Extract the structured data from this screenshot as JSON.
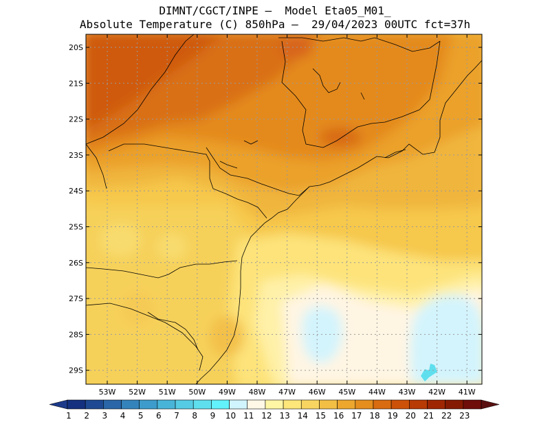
{
  "title_line1": "DIMNT/CGCT/INPE –  Model Eta05_M01_",
  "title_line2": "Absolute Temperature (C) 850hPa –  29/04/2023 00UTC fct=37h",
  "lat_labels": [
    "20S",
    "21S",
    "22S",
    "23S",
    "24S",
    "25S",
    "26S",
    "27S",
    "28S",
    "29S"
  ],
  "lon_labels": [
    "53W",
    "52W",
    "51W",
    "50W",
    "49W",
    "48W",
    "47W",
    "46W",
    "45W",
    "44W",
    "43W",
    "42W",
    "41W"
  ],
  "colorbar": {
    "labels": [
      "1",
      "2",
      "3",
      "4",
      "5",
      "6",
      "7",
      "8",
      "9",
      "10",
      "11",
      "12",
      "13",
      "14",
      "15",
      "16",
      "17",
      "18",
      "19",
      "20",
      "21",
      "22",
      "23"
    ],
    "colors": [
      "#15307f",
      "#1f4a93",
      "#2a66a8",
      "#3583bb",
      "#3d9ccb",
      "#48b5d8",
      "#56cbe4",
      "#5fdfee",
      "#62f2fb",
      "#d1f5ff",
      "#fff8e6",
      "#fff6a5",
      "#fde67a",
      "#f8d560",
      "#f2bf44",
      "#eda72e",
      "#e58d1d",
      "#d96b10",
      "#cc5209",
      "#b83a05",
      "#9f2603",
      "#851a02",
      "#6e0d0a"
    ],
    "low_color": "#1d3a8a",
    "high_color": "#5a1010"
  },
  "colors": {
    "coast_line": "#000000",
    "grid": "#9a9a9a"
  }
}
